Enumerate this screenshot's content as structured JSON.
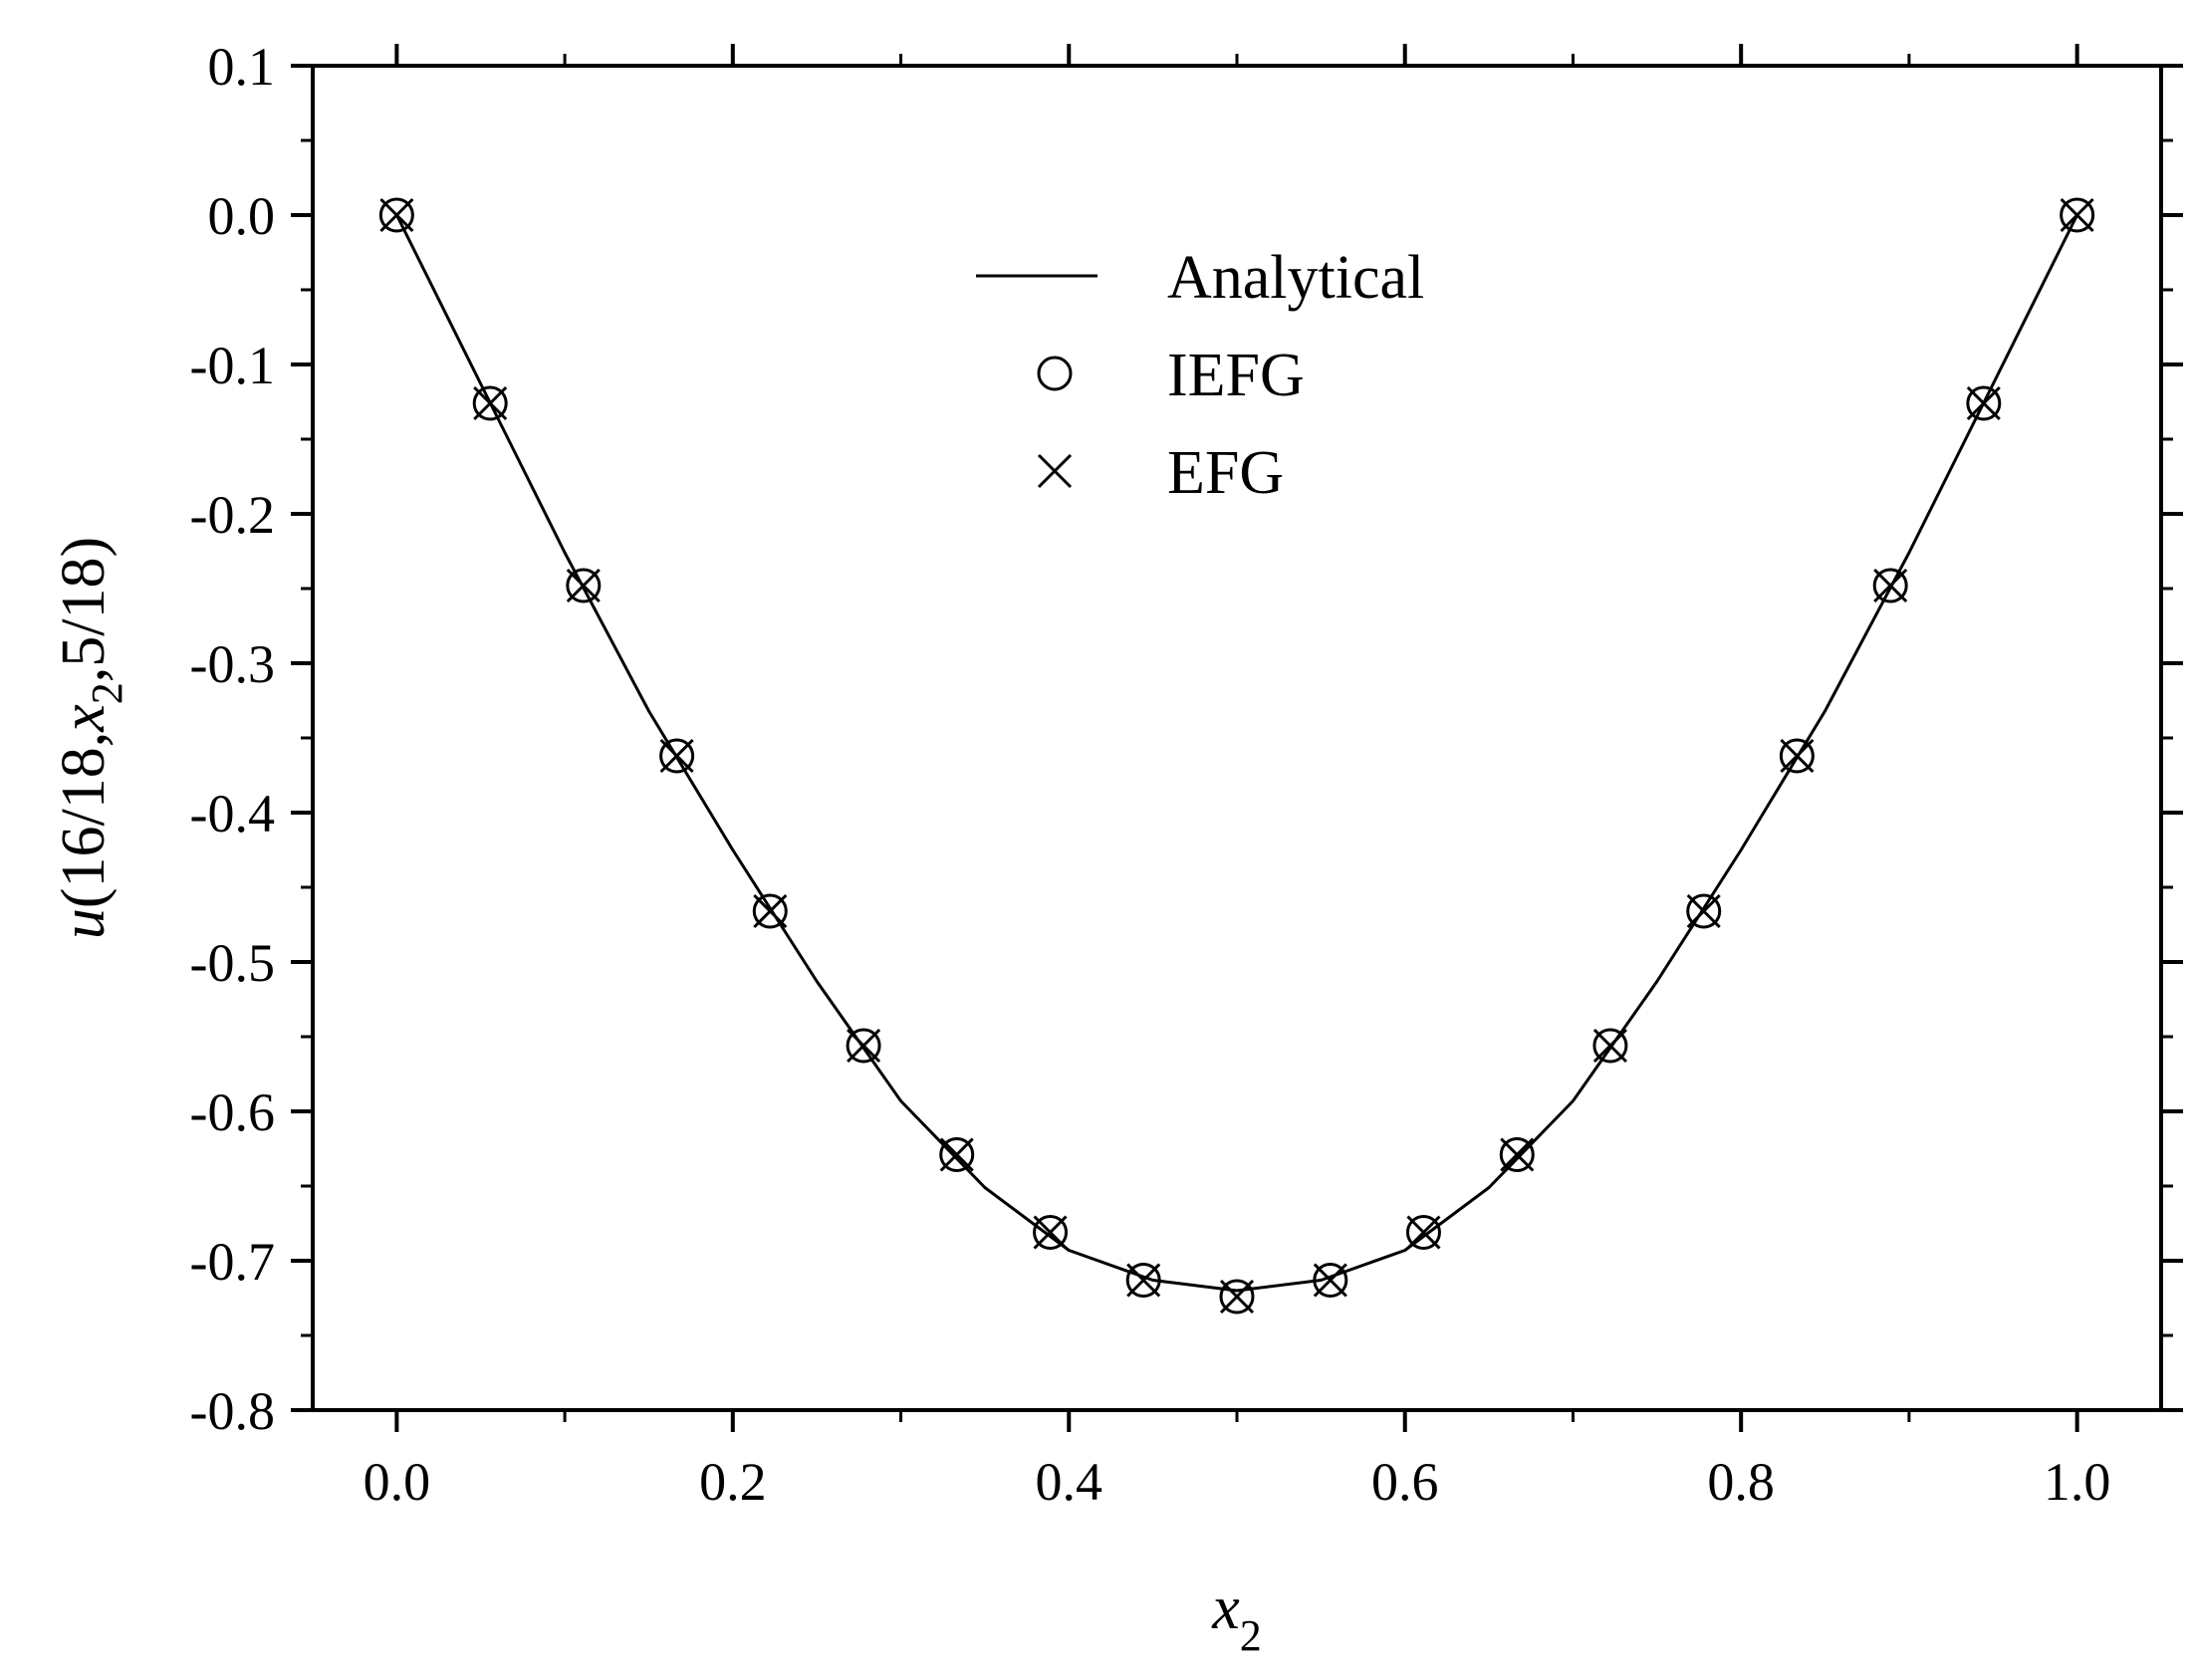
{
  "chart_data": {
    "type": "line",
    "title": "",
    "xlabel": {
      "base": "x",
      "sub": "2"
    },
    "ylabel": {
      "pre": "u",
      "mid": "(16/18,",
      "var": "x",
      "sub": "2",
      "post": ",5/18)"
    },
    "xlim": [
      -0.05,
      1.05
    ],
    "ylim": [
      -0.8,
      0.1
    ],
    "xticks": [
      0.0,
      0.2,
      0.4,
      0.6,
      0.8,
      1.0
    ],
    "xtick_labels": [
      "0.0",
      "0.2",
      "0.4",
      "0.6",
      "0.8",
      "1.0"
    ],
    "yticks": [
      0.1,
      0.0,
      -0.1,
      -0.2,
      -0.3,
      -0.4,
      -0.5,
      -0.6,
      -0.7,
      -0.8
    ],
    "ytick_labels": [
      "0.1",
      "0.0",
      "-0.1",
      "-0.2",
      "-0.3",
      "-0.4",
      "-0.5",
      "-0.6",
      "-0.7",
      "-0.8"
    ],
    "grid": false,
    "legend": {
      "placement": "top-center",
      "entries": [
        "Analytical",
        "IEFG",
        "EFG"
      ]
    },
    "series": [
      {
        "name": "Analytical",
        "style": "line",
        "x": [
          0.0,
          0.05,
          0.1,
          0.15,
          0.2,
          0.25,
          0.3,
          0.35,
          0.4,
          0.45,
          0.5,
          0.55,
          0.6,
          0.65,
          0.7,
          0.75,
          0.8,
          0.85,
          0.9,
          0.95,
          1.0
        ],
        "y": [
          0.0,
          -0.113,
          -0.226,
          -0.332,
          -0.425,
          -0.513,
          -0.593,
          -0.651,
          -0.693,
          -0.713,
          -0.72,
          -0.713,
          -0.693,
          -0.651,
          -0.593,
          -0.513,
          -0.425,
          -0.332,
          -0.226,
          -0.113,
          0.0
        ]
      },
      {
        "name": "IEFG",
        "style": "circle",
        "x": [
          0.0,
          0.0556,
          0.1111,
          0.1667,
          0.2222,
          0.2778,
          0.3333,
          0.3889,
          0.4444,
          0.5,
          0.5556,
          0.6111,
          0.6667,
          0.7222,
          0.7778,
          0.8333,
          0.8889,
          0.9444,
          1.0
        ],
        "y": [
          0.0,
          -0.126,
          -0.248,
          -0.362,
          -0.466,
          -0.556,
          -0.629,
          -0.681,
          -0.713,
          -0.724,
          -0.713,
          -0.681,
          -0.629,
          -0.556,
          -0.466,
          -0.362,
          -0.248,
          -0.126,
          0.0
        ]
      },
      {
        "name": "EFG",
        "style": "cross",
        "x": [
          0.0,
          0.0556,
          0.1111,
          0.1667,
          0.2222,
          0.2778,
          0.3333,
          0.3889,
          0.4444,
          0.5,
          0.5556,
          0.6111,
          0.6667,
          0.7222,
          0.7778,
          0.8333,
          0.8889,
          0.9444,
          1.0
        ],
        "y": [
          0.0,
          -0.126,
          -0.248,
          -0.362,
          -0.466,
          -0.556,
          -0.629,
          -0.681,
          -0.713,
          -0.724,
          -0.713,
          -0.681,
          -0.629,
          -0.556,
          -0.466,
          -0.362,
          -0.248,
          -0.126,
          0.0
        ]
      }
    ],
    "colors": {
      "line": "#000000",
      "background": "#ffffff"
    }
  }
}
